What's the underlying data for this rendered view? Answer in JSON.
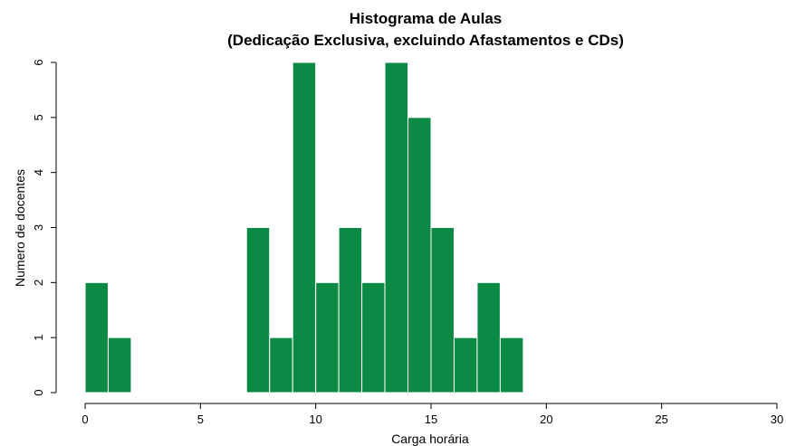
{
  "chart_data": {
    "type": "bar",
    "title": "Histograma de Aulas",
    "subtitle": "(Dedicação Exclusiva, excluindo Afastamentos e CDs)",
    "xlabel": "Carga horária",
    "ylabel": "Numero de docentes",
    "xlim": [
      0,
      30
    ],
    "ylim": [
      0,
      6
    ],
    "xticks": [
      "0",
      "5",
      "10",
      "15",
      "20",
      "25",
      "30"
    ],
    "yticks": [
      "0",
      "1",
      "2",
      "3",
      "4",
      "5",
      "6"
    ],
    "bin_width": 1,
    "bins": [
      {
        "x0": 0,
        "x1": 1,
        "count": 2
      },
      {
        "x0": 1,
        "x1": 2,
        "count": 1
      },
      {
        "x0": 7,
        "x1": 8,
        "count": 3
      },
      {
        "x0": 8,
        "x1": 9,
        "count": 1
      },
      {
        "x0": 9,
        "x1": 10,
        "count": 6
      },
      {
        "x0": 10,
        "x1": 11,
        "count": 2
      },
      {
        "x0": 11,
        "x1": 12,
        "count": 3
      },
      {
        "x0": 12,
        "x1": 13,
        "count": 2
      },
      {
        "x0": 13,
        "x1": 14,
        "count": 6
      },
      {
        "x0": 14,
        "x1": 15,
        "count": 5
      },
      {
        "x0": 15,
        "x1": 16,
        "count": 3
      },
      {
        "x0": 16,
        "x1": 17,
        "count": 1
      },
      {
        "x0": 17,
        "x1": 18,
        "count": 2
      },
      {
        "x0": 18,
        "x1": 19,
        "count": 1
      }
    ],
    "grid": false,
    "legend": "none",
    "bar_color": "#0b8a45"
  }
}
